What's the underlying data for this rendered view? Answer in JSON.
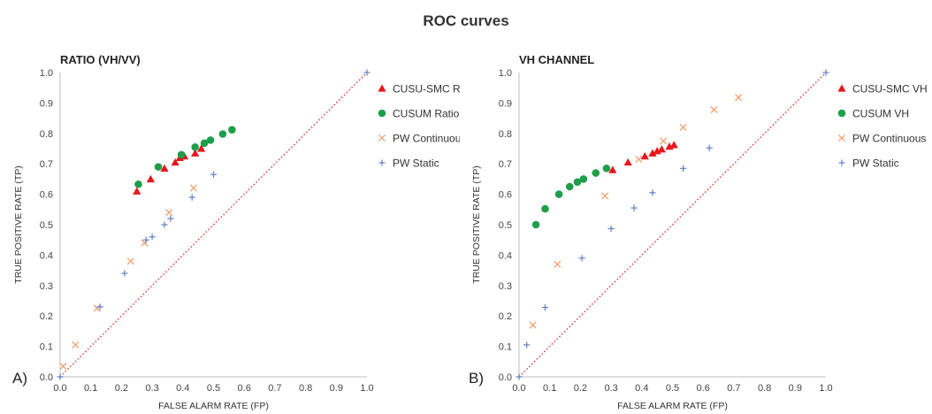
{
  "title": "ROC curves",
  "chart_data": [
    {
      "type": "scatter",
      "panel_label": "A)",
      "title": "RATIO (VH/VV)",
      "xlabel": "FALSE ALARM RATE (FP)",
      "ylabel": "TRUE POSITIVE RATE (TP)",
      "xlim": [
        0,
        1
      ],
      "ylim": [
        0,
        1
      ],
      "xticks": [
        "0.0",
        "0.1",
        "0.2",
        "0.3",
        "0.4",
        "0.5",
        "0.6",
        "0.7",
        "0.8",
        "0.9",
        "1.0"
      ],
      "yticks": [
        "0.0",
        "0.1",
        "0.2",
        "0.3",
        "0.4",
        "0.5",
        "0.6",
        "0.7",
        "0.8",
        "0.9",
        "1.0"
      ],
      "grid": false,
      "legend_position": "right",
      "diagonal": {
        "from": [
          0,
          0
        ],
        "to": [
          1,
          1
        ],
        "color": "#e03030",
        "style": "dotted"
      },
      "series": [
        {
          "name": "CUSU-SMC Ratio",
          "marker": "triangle",
          "color": "#e8161c",
          "x": [
            0.25,
            0.295,
            0.34,
            0.375,
            0.39,
            0.405,
            0.44,
            0.46
          ],
          "y": [
            0.61,
            0.65,
            0.685,
            0.705,
            0.72,
            0.725,
            0.735,
            0.75
          ]
        },
        {
          "name": "CUSUM Ratio",
          "marker": "circle",
          "color": "#1e9e4a",
          "x": [
            0.255,
            0.32,
            0.395,
            0.44,
            0.47,
            0.49,
            0.53,
            0.56
          ],
          "y": [
            0.633,
            0.69,
            0.73,
            0.755,
            0.768,
            0.778,
            0.798,
            0.812
          ]
        },
        {
          "name": "PW Continuous",
          "marker": "x",
          "color": "#f0a070",
          "x": [
            0.01,
            0.05,
            0.12,
            0.23,
            0.275,
            0.355,
            0.435
          ],
          "y": [
            0.035,
            0.105,
            0.225,
            0.38,
            0.44,
            0.54,
            0.62
          ]
        },
        {
          "name": "PW Static",
          "marker": "plus",
          "color": "#6080c8",
          "x": [
            0.0,
            0.13,
            0.21,
            0.28,
            0.3,
            0.34,
            0.36,
            0.43,
            0.5,
            1.0
          ],
          "y": [
            0.0,
            0.23,
            0.34,
            0.45,
            0.46,
            0.5,
            0.52,
            0.59,
            0.665,
            1.0
          ]
        }
      ]
    },
    {
      "type": "scatter",
      "panel_label": "B)",
      "title": "VH CHANNEL",
      "xlabel": "FALSE ALARM RATE (FP)",
      "ylabel": "TRUE POSITIVE RATE (TP)",
      "xlim": [
        0,
        1
      ],
      "ylim": [
        0,
        1
      ],
      "xticks": [
        "0.0",
        "0.1",
        "0.2",
        "0.3",
        "0.4",
        "0.5",
        "0.6",
        "0.7",
        "0.8",
        "0.9",
        "1.0"
      ],
      "yticks": [
        "0.0",
        "0.1",
        "0.2",
        "0.3",
        "0.4",
        "0.5",
        "0.6",
        "0.7",
        "0.8",
        "0.9",
        "1.0"
      ],
      "grid": false,
      "legend_position": "right",
      "diagonal": {
        "from": [
          0,
          0
        ],
        "to": [
          1,
          1
        ],
        "color": "#e03030",
        "style": "dotted"
      },
      "series": [
        {
          "name": "CUSU-SMC VH",
          "marker": "triangle",
          "color": "#e8161c",
          "x": [
            0.305,
            0.355,
            0.41,
            0.435,
            0.45,
            0.465,
            0.49,
            0.505
          ],
          "y": [
            0.68,
            0.705,
            0.725,
            0.735,
            0.742,
            0.748,
            0.757,
            0.762
          ]
        },
        {
          "name": "CUSUM VH",
          "marker": "circle",
          "color": "#1e9e4a",
          "x": [
            0.055,
            0.085,
            0.13,
            0.165,
            0.19,
            0.21,
            0.25,
            0.285
          ],
          "y": [
            0.5,
            0.552,
            0.6,
            0.625,
            0.64,
            0.65,
            0.67,
            0.685
          ]
        },
        {
          "name": "PW Continuous",
          "marker": "x",
          "color": "#f0a070",
          "x": [
            0.045,
            0.125,
            0.28,
            0.39,
            0.47,
            0.535,
            0.635,
            0.715
          ],
          "y": [
            0.17,
            0.37,
            0.595,
            0.715,
            0.775,
            0.82,
            0.878,
            0.918
          ]
        },
        {
          "name": "PW Static",
          "marker": "plus",
          "color": "#6080c8",
          "x": [
            0.0,
            0.025,
            0.085,
            0.205,
            0.3,
            0.375,
            0.435,
            0.535,
            0.62,
            1.0
          ],
          "y": [
            0.0,
            0.105,
            0.228,
            0.39,
            0.487,
            0.555,
            0.605,
            0.685,
            0.752,
            1.0
          ]
        }
      ]
    }
  ]
}
